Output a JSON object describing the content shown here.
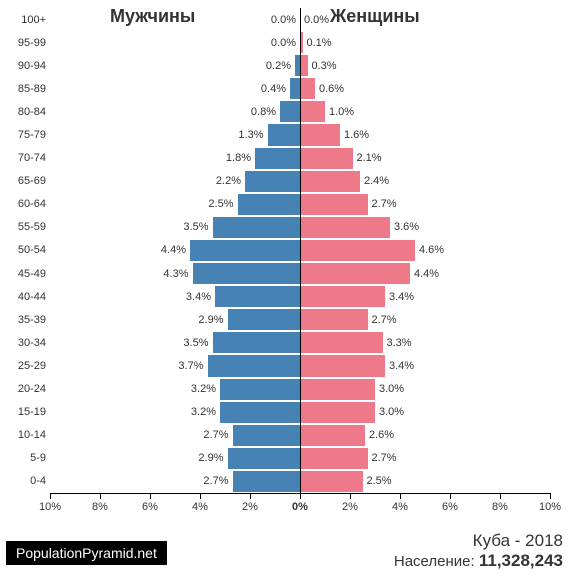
{
  "chart": {
    "type": "population-pyramid",
    "male_label": "Мужчины",
    "female_label": "Женщины",
    "male_color": "#4682b4",
    "female_color": "#ee7989",
    "background": "#ffffff",
    "axis_color": "#000000",
    "text_color": "#333333",
    "label_fontsize": 11,
    "header_fontsize": 18,
    "x_max_pct": 10,
    "x_ticks_left": [
      "10%",
      "8%",
      "6%",
      "4%",
      "2%"
    ],
    "x_center": "0%",
    "x_ticks_right": [
      "2%",
      "4%",
      "6%",
      "8%",
      "10%"
    ],
    "x_tick_step": 2,
    "age_groups": [
      {
        "label": "100+",
        "m": 0.0,
        "f": 0.0
      },
      {
        "label": "95-99",
        "m": 0.0,
        "f": 0.1
      },
      {
        "label": "90-94",
        "m": 0.2,
        "f": 0.3
      },
      {
        "label": "85-89",
        "m": 0.4,
        "f": 0.6
      },
      {
        "label": "80-84",
        "m": 0.8,
        "f": 1.0
      },
      {
        "label": "75-79",
        "m": 1.3,
        "f": 1.6
      },
      {
        "label": "70-74",
        "m": 1.8,
        "f": 2.1
      },
      {
        "label": "65-69",
        "m": 2.2,
        "f": 2.4
      },
      {
        "label": "60-64",
        "m": 2.5,
        "f": 2.7
      },
      {
        "label": "55-59",
        "m": 3.5,
        "f": 3.6
      },
      {
        "label": "50-54",
        "m": 4.4,
        "f": 4.6
      },
      {
        "label": "45-49",
        "m": 4.3,
        "f": 4.4
      },
      {
        "label": "40-44",
        "m": 3.4,
        "f": 3.4
      },
      {
        "label": "35-39",
        "m": 2.9,
        "f": 2.7
      },
      {
        "label": "30-34",
        "m": 3.5,
        "f": 3.3
      },
      {
        "label": "25-29",
        "m": 3.7,
        "f": 3.4
      },
      {
        "label": "20-24",
        "m": 3.2,
        "f": 3.0
      },
      {
        "label": "15-19",
        "m": 3.2,
        "f": 3.0
      },
      {
        "label": "10-14",
        "m": 2.7,
        "f": 2.6
      },
      {
        "label": "5-9",
        "m": 2.9,
        "f": 2.7
      },
      {
        "label": "0-4",
        "m": 2.7,
        "f": 2.5
      }
    ]
  },
  "footer": {
    "source": "PopulationPyramid.net",
    "title": "Куба - 2018",
    "pop_label": "Население: ",
    "pop_value": "11,328,243"
  }
}
